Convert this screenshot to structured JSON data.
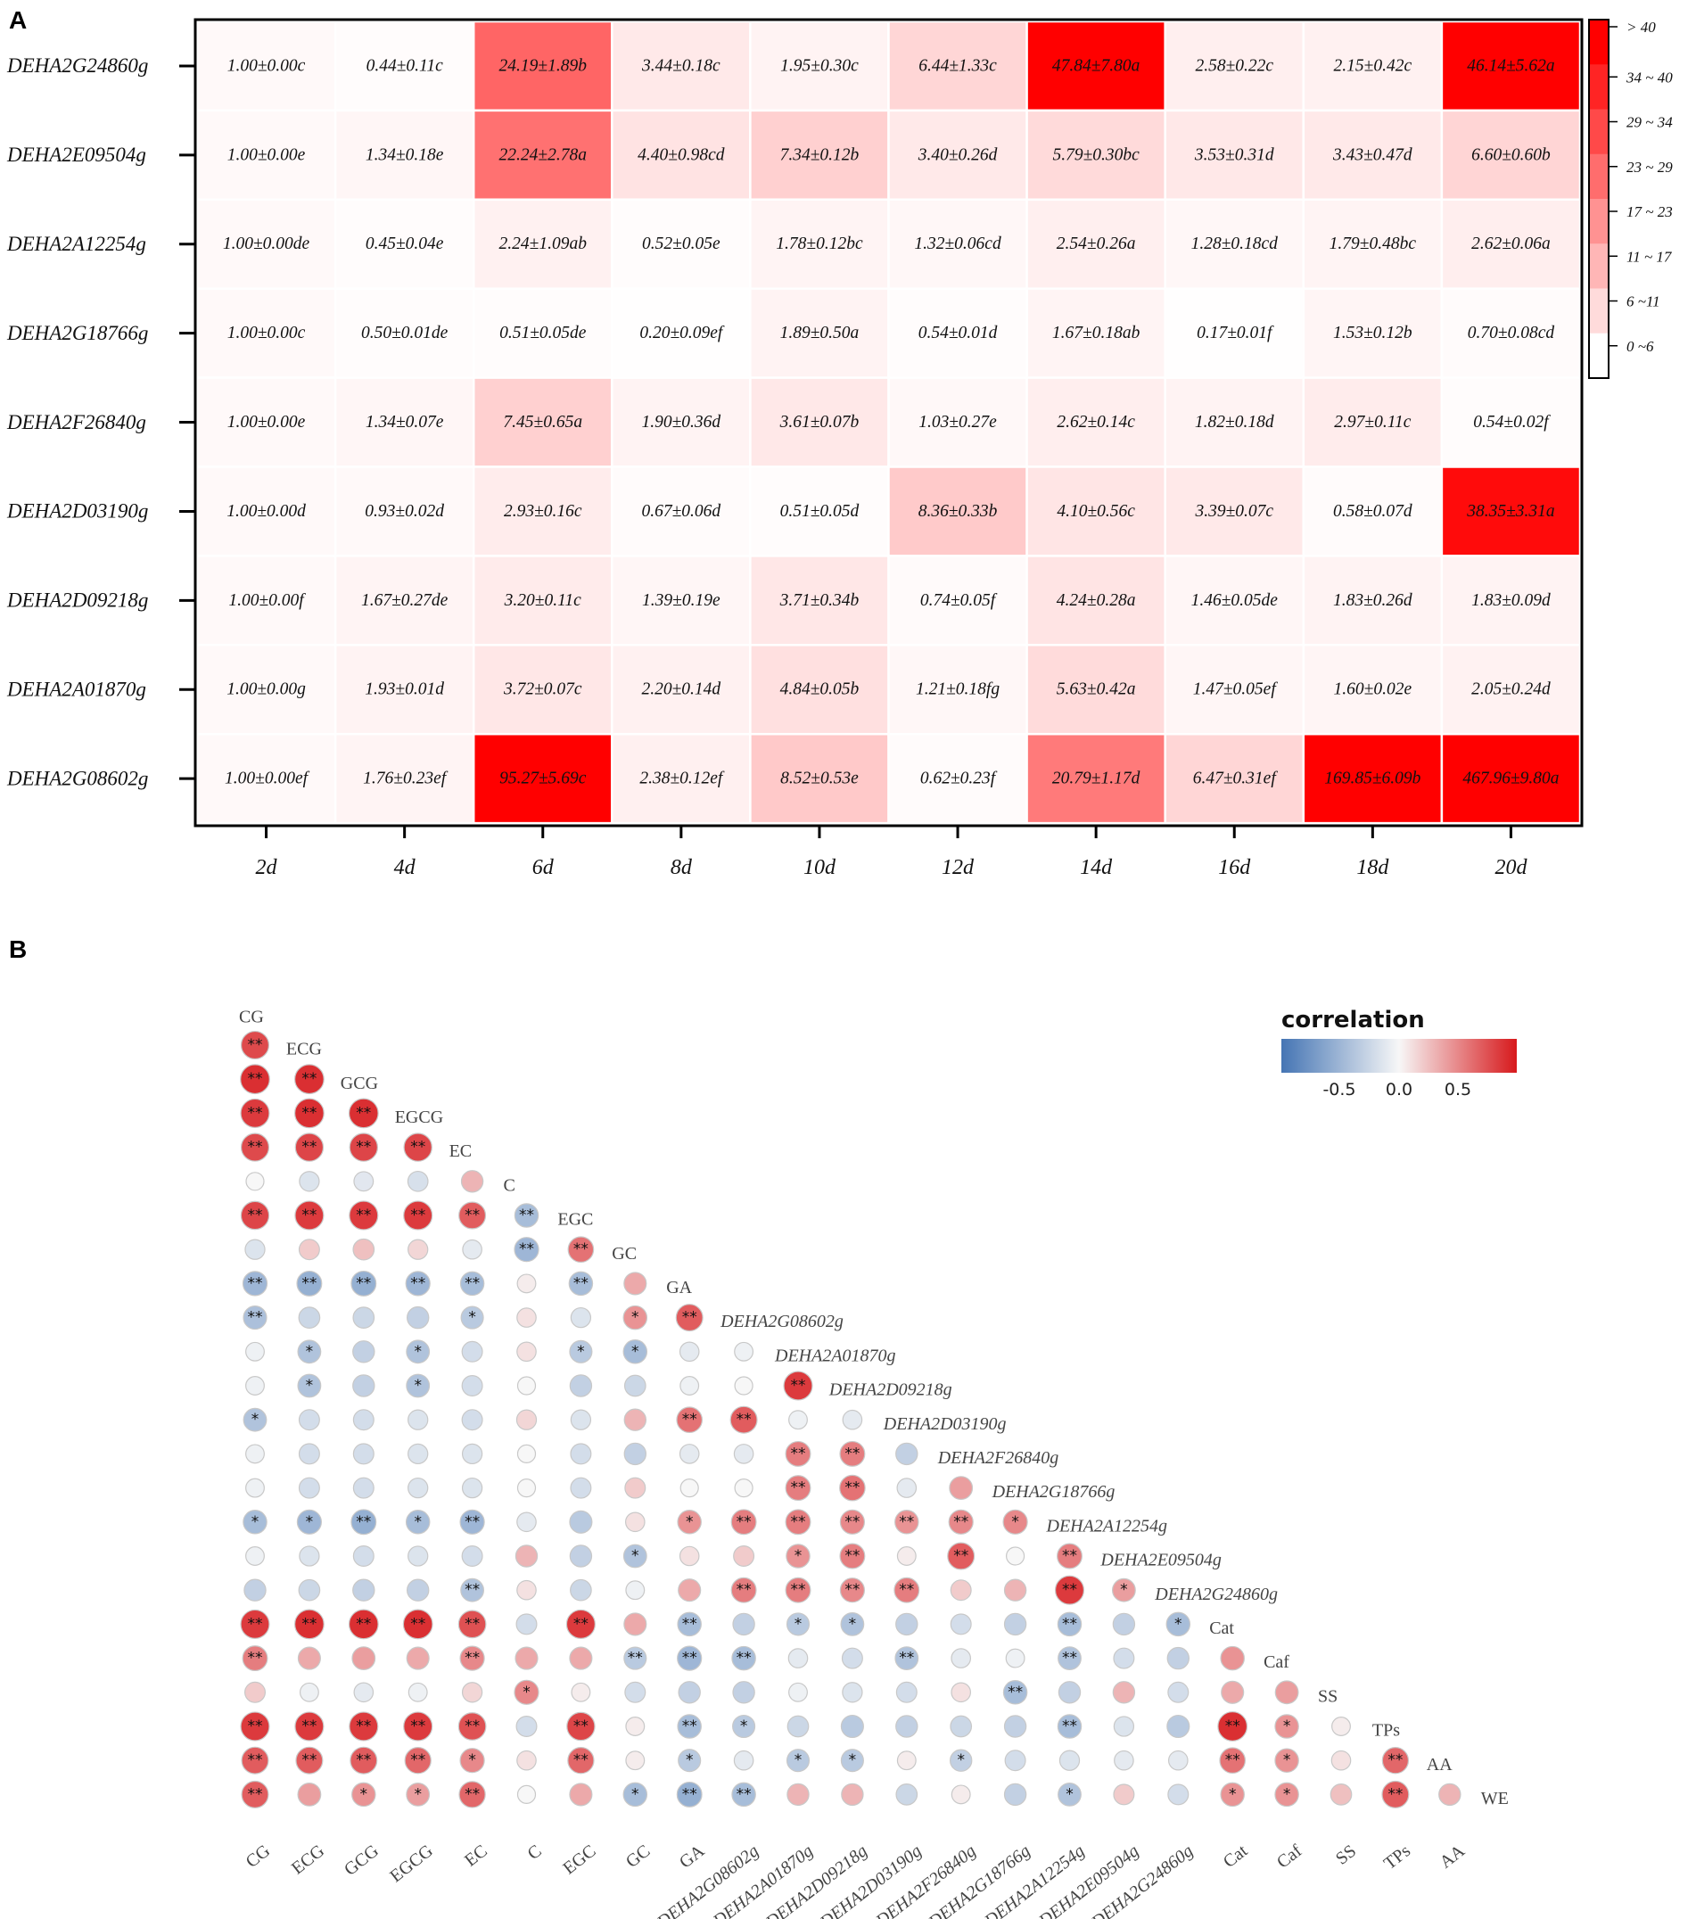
{
  "panelA": {
    "letter": "A",
    "chart_data": {
      "type": "heatmap",
      "title": "",
      "rows": [
        "DEHA2G24860g",
        "DEHA2E09504g",
        "DEHA2A12254g",
        "DEHA2G18766g",
        "DEHA2F26840g",
        "DEHA2D03190g",
        "DEHA2D09218g",
        "DEHA2A01870g",
        "DEHA2G08602g"
      ],
      "columns": [
        "2d",
        "4d",
        "6d",
        "8d",
        "10d",
        "12d",
        "14d",
        "16d",
        "18d",
        "20d"
      ],
      "cells": [
        [
          "1.00±0.00c",
          "0.44±0.11c",
          "24.19±1.89b",
          "3.44±0.18c",
          "1.95±0.30c",
          "6.44±1.33c",
          "47.84±7.80a",
          "2.58±0.22c",
          "2.15±0.42c",
          "46.14±5.62a"
        ],
        [
          "1.00±0.00e",
          "1.34±0.18e",
          "22.24±2.78a",
          "4.40±0.98cd",
          "7.34±0.12b",
          "3.40±0.26d",
          "5.79±0.30bc",
          "3.53±0.31d",
          "3.43±0.47d",
          "6.60±0.60b"
        ],
        [
          "1.00±0.00de",
          "0.45±0.04e",
          "2.24±1.09ab",
          "0.52±0.05e",
          "1.78±0.12bc",
          "1.32±0.06cd",
          "2.54±0.26a",
          "1.28±0.18cd",
          "1.79±0.48bc",
          "2.62±0.06a"
        ],
        [
          "1.00±0.00c",
          "0.50±0.01de",
          "0.51±0.05de",
          "0.20±0.09ef",
          "1.89±0.50a",
          "0.54±0.01d",
          "1.67±0.18ab",
          "0.17±0.01f",
          "1.53±0.12b",
          "0.70±0.08cd"
        ],
        [
          "1.00±0.00e",
          "1.34±0.07e",
          "7.45±0.65a",
          "1.90±0.36d",
          "3.61±0.07b",
          "1.03±0.27e",
          "2.62±0.14c",
          "1.82±0.18d",
          "2.97±0.11c",
          "0.54±0.02f"
        ],
        [
          "1.00±0.00d",
          "0.93±0.02d",
          "2.93±0.16c",
          "0.67±0.06d",
          "0.51±0.05d",
          "8.36±0.33b",
          "4.10±0.56c",
          "3.39±0.07c",
          "0.58±0.07d",
          "38.35±3.31a"
        ],
        [
          "1.00±0.00f",
          "1.67±0.27de",
          "3.20±0.11c",
          "1.39±0.19e",
          "3.71±0.34b",
          "0.74±0.05f",
          "4.24±0.28a",
          "1.46±0.05de",
          "1.83±0.26d",
          "1.83±0.09d"
        ],
        [
          "1.00±0.00g",
          "1.93±0.01d",
          "3.72±0.07c",
          "2.20±0.14d",
          "4.84±0.05b",
          "1.21±0.18fg",
          "5.63±0.42a",
          "1.47±0.05ef",
          "1.60±0.02e",
          "2.05±0.24d"
        ],
        [
          "1.00±0.00ef",
          "1.76±0.23ef",
          "95.27±5.69c",
          "2.38±0.12ef",
          "8.52±0.53e",
          "0.62±0.23f",
          "20.79±1.17d",
          "6.47±0.31ef",
          "169.85±6.09b",
          "467.96±9.80a"
        ]
      ],
      "values": [
        [
          1.0,
          0.44,
          24.19,
          3.44,
          1.95,
          6.44,
          47.84,
          2.58,
          2.15,
          46.14
        ],
        [
          1.0,
          1.34,
          22.24,
          4.4,
          7.34,
          3.4,
          5.79,
          3.53,
          3.43,
          6.6
        ],
        [
          1.0,
          0.45,
          2.24,
          0.52,
          1.78,
          1.32,
          2.54,
          1.28,
          1.79,
          2.62
        ],
        [
          1.0,
          0.5,
          0.51,
          0.2,
          1.89,
          0.54,
          1.67,
          0.17,
          1.53,
          0.7
        ],
        [
          1.0,
          1.34,
          7.45,
          1.9,
          3.61,
          1.03,
          2.62,
          1.82,
          2.97,
          0.54
        ],
        [
          1.0,
          0.93,
          2.93,
          0.67,
          0.51,
          8.36,
          4.1,
          3.39,
          0.58,
          38.35
        ],
        [
          1.0,
          1.67,
          3.2,
          1.39,
          3.71,
          0.74,
          4.24,
          1.46,
          1.83,
          1.83
        ],
        [
          1.0,
          1.93,
          3.72,
          2.2,
          4.84,
          1.21,
          5.63,
          1.47,
          1.6,
          2.05
        ],
        [
          1.0,
          1.76,
          95.27,
          2.38,
          8.52,
          0.62,
          20.79,
          6.47,
          169.85,
          467.96
        ]
      ],
      "legend": {
        "bins": [
          "> 40",
          "34 ~ 40",
          "29 ~ 34",
          "23 ~ 29",
          "17 ~ 23",
          "11 ~ 17",
          "6  ~11",
          "0  ~6"
        ],
        "range": [
          0,
          40
        ]
      },
      "colors": {
        "low": "#ffffff",
        "high": "#ff0000"
      }
    }
  },
  "panelB": {
    "letter": "B",
    "chart_data": {
      "type": "heatmap",
      "subtype": "lower-triangle correlation matrix",
      "variables": [
        "CG",
        "ECG",
        "GCG",
        "EGCG",
        "EC",
        "C",
        "EGC",
        "GC",
        "GA",
        "DEHA2G08602g",
        "DEHA2A01870g",
        "DEHA2D09218g",
        "DEHA2D03190g",
        "DEHA2F26840g",
        "DEHA2G18766g",
        "DEHA2A12254g",
        "DEHA2E09504g",
        "DEHA2G24860g",
        "Cat",
        "Caf",
        "SS",
        "TPs",
        "AA",
        "WE"
      ],
      "italic_variables": [
        "DEHA2G08602g",
        "DEHA2A01870g",
        "DEHA2D09218g",
        "DEHA2D03190g",
        "DEHA2F26840g",
        "DEHA2G18766g",
        "DEHA2A12254g",
        "DEHA2E09504g",
        "DEHA2G24860g"
      ],
      "corr": [
        [
          0.78
        ],
        [
          0.9,
          0.9
        ],
        [
          0.85,
          0.9,
          0.9
        ],
        [
          0.78,
          0.8,
          0.8,
          0.8
        ],
        [
          0.0,
          -0.15,
          -0.12,
          -0.18,
          0.3
        ],
        [
          0.8,
          0.85,
          0.85,
          0.85,
          0.7,
          -0.45
        ],
        [
          -0.15,
          0.2,
          0.25,
          0.15,
          -0.1,
          -0.5,
          0.6
        ],
        [
          -0.5,
          -0.55,
          -0.55,
          -0.5,
          -0.45,
          0.05,
          -0.45,
          0.35
        ],
        [
          -0.42,
          -0.25,
          -0.25,
          -0.3,
          -0.35,
          0.1,
          -0.15,
          0.45,
          0.7
        ],
        [
          -0.05,
          -0.4,
          -0.3,
          -0.4,
          -0.2,
          0.1,
          -0.35,
          -0.45,
          -0.1,
          -0.05
        ],
        [
          -0.05,
          -0.4,
          -0.3,
          -0.4,
          -0.2,
          0.0,
          -0.3,
          -0.25,
          -0.05,
          0.0,
          0.85
        ],
        [
          -0.4,
          -0.2,
          -0.2,
          -0.15,
          -0.2,
          0.15,
          -0.15,
          0.3,
          0.6,
          0.7,
          -0.05,
          -0.1
        ],
        [
          -0.05,
          -0.2,
          -0.2,
          -0.15,
          -0.15,
          0.0,
          -0.2,
          -0.3,
          -0.1,
          -0.1,
          0.55,
          0.55,
          -0.3
        ],
        [
          -0.05,
          -0.2,
          -0.2,
          -0.15,
          -0.15,
          0.0,
          -0.2,
          0.2,
          0.0,
          0.0,
          0.55,
          0.6,
          -0.1,
          0.4
        ],
        [
          -0.45,
          -0.5,
          -0.55,
          -0.45,
          -0.5,
          -0.1,
          -0.35,
          0.1,
          0.45,
          0.55,
          0.55,
          0.5,
          0.45,
          0.5,
          0.5
        ],
        [
          -0.05,
          -0.15,
          -0.2,
          -0.15,
          -0.2,
          0.3,
          -0.3,
          -0.4,
          0.1,
          0.2,
          0.45,
          0.55,
          0.05,
          0.7,
          0.0,
          0.55
        ],
        [
          -0.3,
          -0.25,
          -0.3,
          -0.3,
          -0.4,
          0.1,
          -0.25,
          -0.05,
          0.35,
          0.55,
          0.55,
          0.5,
          0.55,
          0.2,
          0.3,
          0.85,
          0.4
        ],
        [
          0.85,
          0.9,
          0.9,
          0.9,
          0.75,
          -0.2,
          0.85,
          0.35,
          -0.45,
          -0.3,
          -0.35,
          -0.4,
          -0.3,
          -0.2,
          -0.3,
          -0.45,
          -0.3,
          -0.45
        ],
        [
          0.55,
          0.35,
          0.4,
          0.35,
          0.5,
          0.35,
          0.35,
          -0.35,
          -0.5,
          -0.45,
          -0.1,
          -0.2,
          -0.4,
          -0.1,
          -0.05,
          -0.4,
          -0.2,
          -0.3,
          0.45
        ],
        [
          0.2,
          -0.05,
          -0.1,
          -0.05,
          0.15,
          0.5,
          0.05,
          -0.2,
          -0.3,
          -0.3,
          -0.05,
          -0.15,
          -0.2,
          0.1,
          -0.45,
          -0.3,
          0.3,
          -0.2,
          0.35,
          0.4
        ],
        [
          0.85,
          0.85,
          0.85,
          0.85,
          0.75,
          -0.2,
          0.8,
          0.05,
          -0.45,
          -0.35,
          -0.25,
          -0.35,
          -0.3,
          -0.25,
          -0.3,
          -0.45,
          -0.15,
          -0.35,
          0.9,
          0.45,
          0.05
        ],
        [
          0.7,
          0.7,
          0.7,
          0.65,
          0.5,
          0.1,
          0.65,
          0.05,
          -0.35,
          -0.1,
          -0.35,
          -0.35,
          0.05,
          -0.3,
          -0.2,
          -0.15,
          -0.1,
          -0.1,
          0.6,
          0.45,
          0.1,
          0.65
        ],
        [
          0.7,
          0.4,
          0.45,
          0.4,
          0.65,
          0.0,
          0.35,
          -0.45,
          -0.55,
          -0.45,
          0.3,
          0.3,
          -0.25,
          0.05,
          -0.3,
          -0.4,
          0.2,
          -0.2,
          0.45,
          0.45,
          0.25,
          0.7,
          0.3
        ]
      ],
      "sig": [
        [
          "**"
        ],
        [
          "**",
          "**"
        ],
        [
          "**",
          "**",
          "**"
        ],
        [
          "**",
          "**",
          "**",
          "**"
        ],
        [
          "",
          "",
          "",
          "",
          ""
        ],
        [
          "**",
          "**",
          "**",
          "**",
          "**",
          "**"
        ],
        [
          "",
          "",
          "",
          "",
          "",
          "**",
          "**"
        ],
        [
          "**",
          "**",
          "**",
          "**",
          "**",
          "",
          "**",
          ""
        ],
        [
          "**",
          "",
          "",
          "",
          "*",
          "",
          "",
          "*",
          "**"
        ],
        [
          "",
          "*",
          "",
          "*",
          "",
          "",
          "*",
          "*",
          "",
          ""
        ],
        [
          "",
          "*",
          "",
          "*",
          "",
          "",
          "",
          "",
          "",
          "",
          "**"
        ],
        [
          "*",
          "",
          "",
          "",
          "",
          "",
          "",
          "",
          "**",
          "**",
          "",
          ""
        ],
        [
          "",
          "",
          "",
          "",
          "",
          "",
          "",
          "",
          "",
          "",
          "**",
          "**",
          ""
        ],
        [
          "",
          "",
          "",
          "",
          "",
          "",
          "",
          "",
          "",
          "",
          "**",
          "**",
          "",
          ""
        ],
        [
          "*",
          "*",
          "**",
          "*",
          "**",
          "",
          "",
          "",
          "*",
          "**",
          "**",
          "**",
          "**",
          "**",
          "*"
        ],
        [
          "",
          "",
          "",
          "",
          "",
          "",
          "",
          "*",
          "",
          "",
          "*",
          "**",
          "",
          "**",
          "",
          "**"
        ],
        [
          "",
          "",
          "",
          "",
          "**",
          "",
          "",
          "",
          "",
          "**",
          "**",
          "**",
          "**",
          "",
          "",
          "**",
          "*"
        ],
        [
          "**",
          "**",
          "**",
          "**",
          "**",
          "",
          "**",
          "",
          "**",
          "",
          "*",
          "*",
          "",
          "",
          "",
          "**",
          "",
          "*"
        ],
        [
          "**",
          "",
          "",
          "",
          "**",
          "",
          "",
          "**",
          "**",
          "**",
          "",
          "",
          "**",
          "",
          "",
          "**",
          "",
          ""
        ],
        [
          "",
          "",
          "",
          "",
          "",
          "*",
          "",
          "",
          "",
          "",
          "",
          "",
          "",
          "",
          "**",
          "",
          "",
          "",
          "",
          ""
        ],
        [
          "**",
          "**",
          "**",
          "**",
          "**",
          "",
          "**",
          "",
          "**",
          "*",
          "",
          "",
          "",
          "",
          "",
          "**",
          "",
          "",
          "**",
          "*",
          ""
        ],
        [
          "**",
          "**",
          "**",
          "**",
          "*",
          "",
          "**",
          "",
          "*",
          "",
          "*",
          "*",
          "",
          "*",
          "",
          "",
          "",
          "",
          "**",
          "*",
          "",
          "**"
        ],
        [
          "**",
          "",
          "*",
          "*",
          "**",
          "",
          "",
          "*",
          "**",
          "**",
          "",
          "",
          "",
          "",
          "",
          "*",
          "",
          "",
          "*",
          "*",
          "",
          "**",
          ""
        ]
      ],
      "legend": {
        "title": "correlation",
        "ticks": [
          "-0.5",
          "0.0",
          "0.5"
        ],
        "range": [
          -1,
          1
        ]
      },
      "colors": {
        "negative": "#4575b4",
        "zero": "#f7f7f7",
        "positive": "#d7191c"
      }
    }
  }
}
